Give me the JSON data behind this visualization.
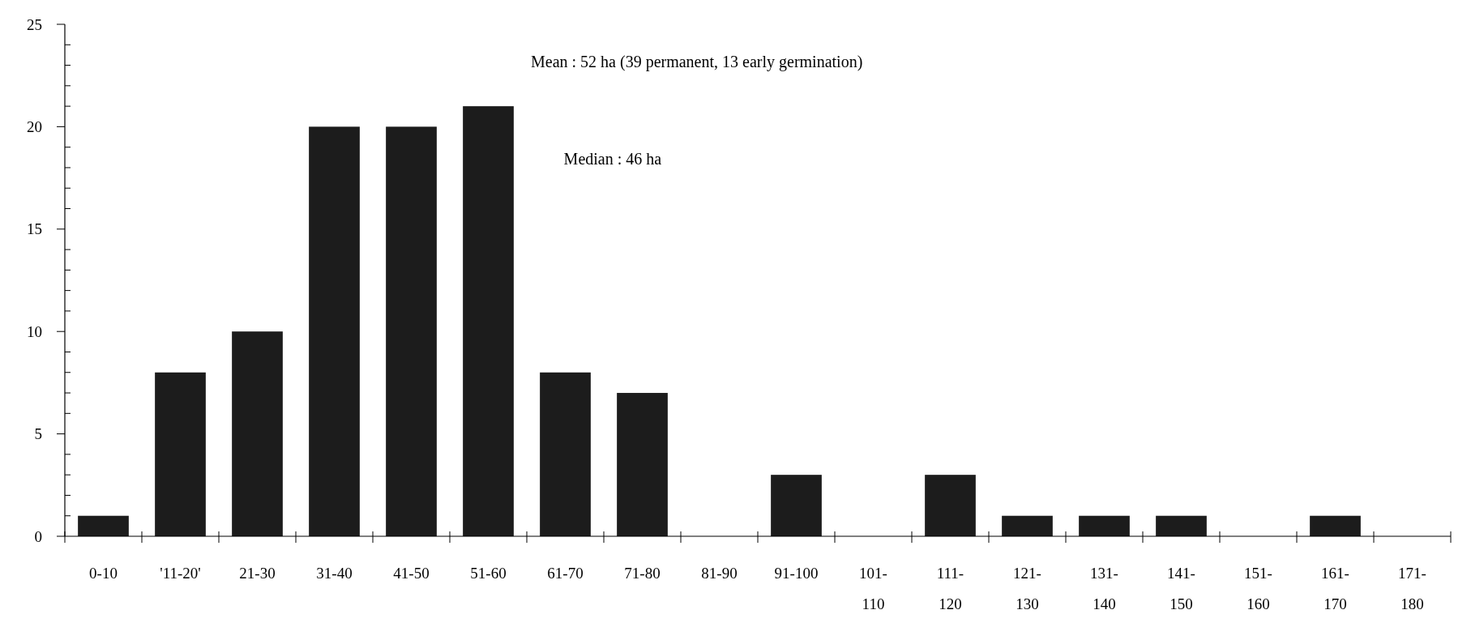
{
  "chart_data": {
    "type": "bar",
    "categories": [
      "0-10",
      "'11-20'",
      "21-30",
      "31-40",
      "41-50",
      "51-60",
      "61-70",
      "71-80",
      "81-90",
      "91-100",
      "101-110",
      "111-120",
      "121-130",
      "131-140",
      "141-150",
      "151-160",
      "161-170",
      "171-180"
    ],
    "values": [
      1,
      8,
      10,
      20,
      20,
      21,
      8,
      7,
      0,
      3,
      0,
      3,
      1,
      1,
      1,
      0,
      1,
      0
    ],
    "color": "#1c1c1c",
    "ylim": [
      0,
      25
    ],
    "yticks": [
      0,
      {
        "value": 1,
        "label": null
      },
      {
        "value": 2,
        "label": null
      },
      {
        "value": 3,
        "label": null
      },
      {
        "value": 4,
        "label": null
      },
      5,
      {
        "value": 6,
        "label": null
      },
      {
        "value": 7,
        "label": null
      },
      {
        "value": 8,
        "label": null
      },
      {
        "value": 9,
        "label": null
      },
      10,
      {
        "value": 11,
        "label": null
      },
      {
        "value": 12,
        "label": null
      },
      {
        "value": 13,
        "label": null
      },
      {
        "value": 14,
        "label": null
      },
      15,
      {
        "value": 16,
        "label": null
      },
      {
        "value": 17,
        "label": null
      },
      {
        "value": 18,
        "label": null
      },
      {
        "value": 19,
        "label": null
      },
      20,
      {
        "value": 21,
        "label": null
      },
      {
        "value": 22,
        "label": null
      },
      {
        "value": 23,
        "label": null
      },
      {
        "value": 24,
        "label": null
      },
      25
    ],
    "annotations": [
      "Mean :  52 ha (39 permanent, 13 early germination)",
      "Median :  46 ha"
    ],
    "grid": false
  }
}
